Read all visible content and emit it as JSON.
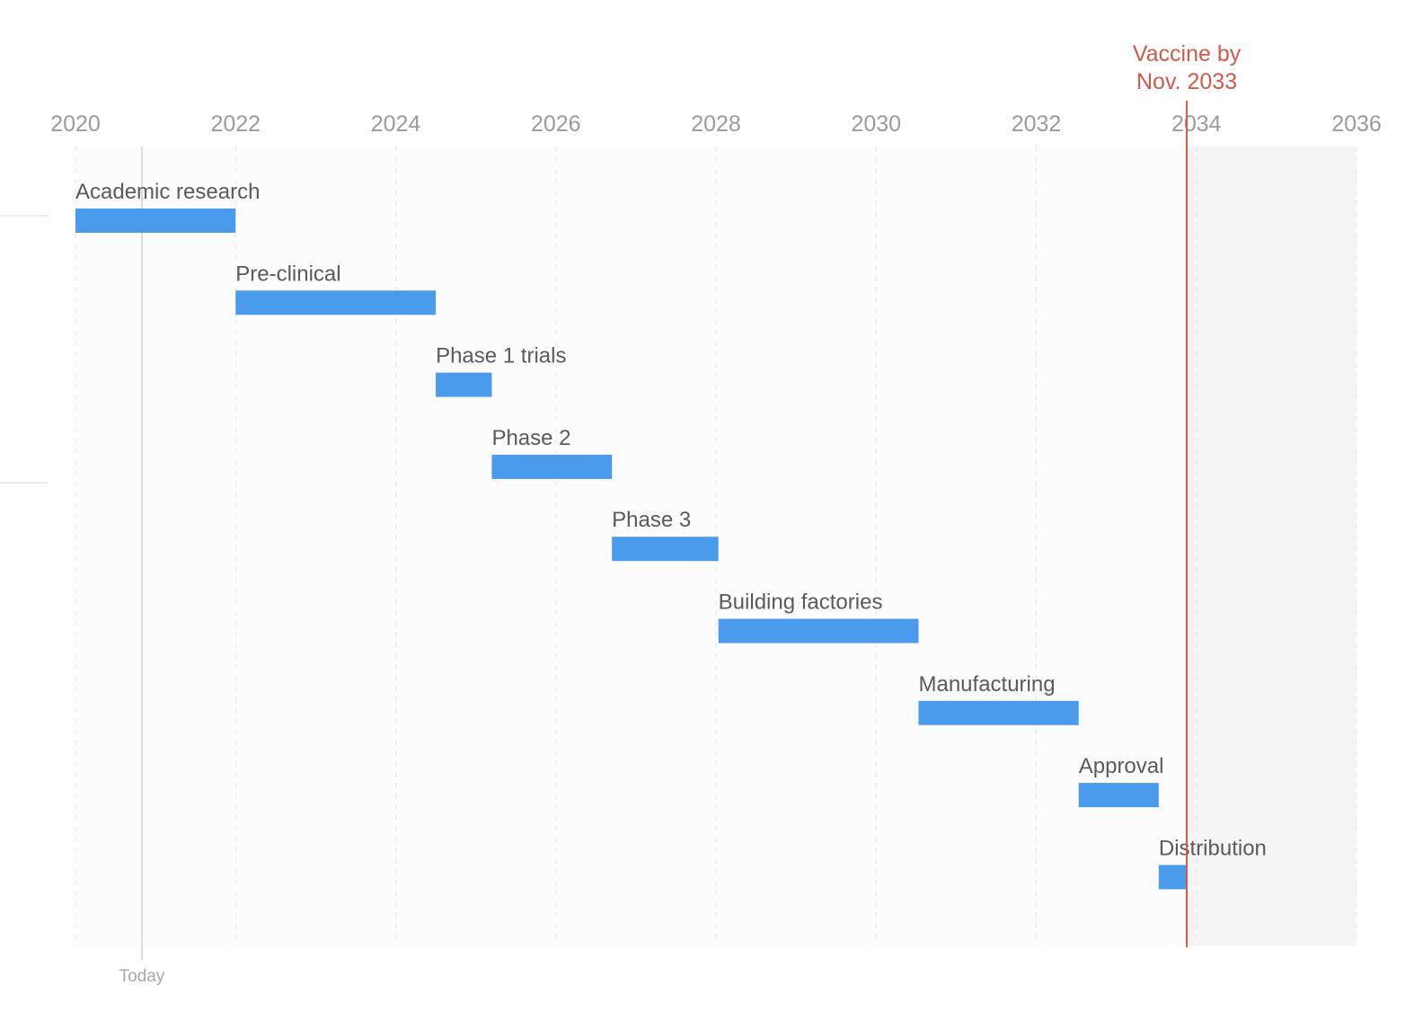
{
  "chart_data": {
    "type": "gantt",
    "x_unit": "year",
    "xlim": [
      2020,
      2036
    ],
    "x_ticks": [
      2020,
      2022,
      2024,
      2026,
      2028,
      2030,
      2032,
      2034,
      2036
    ],
    "grid": true,
    "today": {
      "label": "Today",
      "x": 2020.83
    },
    "marker": {
      "label_lines": [
        "Vaccine by",
        "Nov. 2033"
      ],
      "x": 2033.88,
      "color": "#d05b4b"
    },
    "shaded_after": 2033.88,
    "bar_color": "#4a9bec",
    "tasks": [
      {
        "name": "Academic research",
        "start": 2020.0,
        "end": 2022.0
      },
      {
        "name": "Pre-clinical",
        "start": 2022.0,
        "end": 2024.5
      },
      {
        "name": "Phase 1 trials",
        "start": 2024.5,
        "end": 2025.2
      },
      {
        "name": "Phase 2",
        "start": 2025.2,
        "end": 2026.7
      },
      {
        "name": "Phase 3",
        "start": 2026.7,
        "end": 2028.03
      },
      {
        "name": "Building factories",
        "start": 2028.03,
        "end": 2030.53
      },
      {
        "name": "Manufacturing",
        "start": 2030.53,
        "end": 2032.53
      },
      {
        "name": "Approval",
        "start": 2032.53,
        "end": 2033.53
      },
      {
        "name": "Distribution",
        "start": 2033.53,
        "end": 2033.88
      }
    ]
  }
}
